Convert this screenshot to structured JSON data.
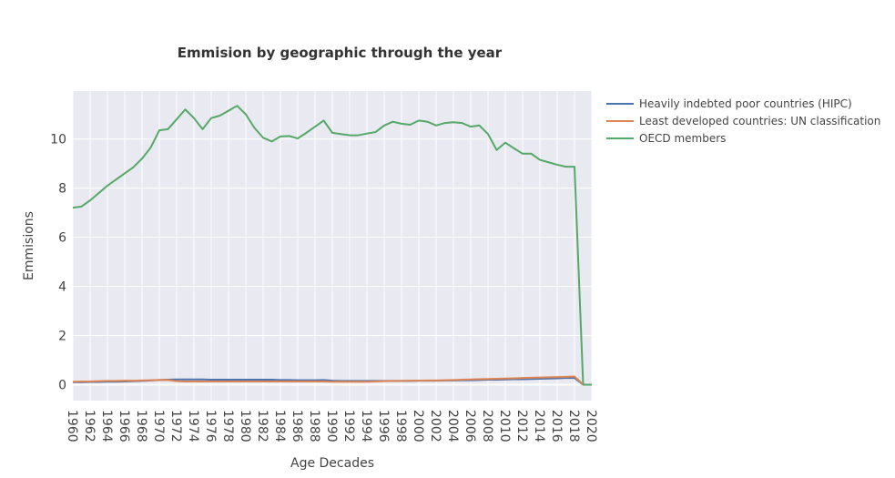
{
  "chart_data": {
    "type": "line",
    "title": "Emmision by geographic through the year",
    "xlabel": "Age Decades",
    "ylabel": "Emmisions",
    "x": [
      1960,
      1961,
      1962,
      1963,
      1964,
      1965,
      1966,
      1967,
      1968,
      1969,
      1970,
      1971,
      1972,
      1973,
      1974,
      1975,
      1976,
      1977,
      1978,
      1979,
      1980,
      1981,
      1982,
      1983,
      1984,
      1985,
      1986,
      1987,
      1988,
      1989,
      1990,
      1991,
      1992,
      1993,
      1994,
      1995,
      1996,
      1997,
      1998,
      1999,
      2000,
      2001,
      2002,
      2003,
      2004,
      2005,
      2006,
      2007,
      2008,
      2009,
      2010,
      2011,
      2012,
      2013,
      2014,
      2015,
      2016,
      2017,
      2018,
      2019,
      2020
    ],
    "xlim": [
      1960,
      2020
    ],
    "ylim": [
      -0.65,
      11.95
    ],
    "xticks": [
      "1960",
      "1962",
      "1964",
      "1966",
      "1968",
      "1970",
      "1972",
      "1974",
      "1976",
      "1978",
      "1980",
      "1982",
      "1984",
      "1986",
      "1988",
      "1990",
      "1992",
      "1994",
      "1996",
      "1998",
      "2000",
      "2002",
      "2004",
      "2006",
      "2008",
      "2010",
      "2012",
      "2014",
      "2016",
      "2018",
      "2020"
    ],
    "yticks": [
      "0",
      "2",
      "4",
      "6",
      "8",
      "10"
    ],
    "grid": true,
    "legend_position": "top-right",
    "series": [
      {
        "name": "Heavily indebted poor countries (HIPC)",
        "color": "#4c72b0",
        "values": [
          0.1,
          0.1,
          0.11,
          0.11,
          0.12,
          0.12,
          0.13,
          0.14,
          0.15,
          0.17,
          0.19,
          0.2,
          0.21,
          0.21,
          0.21,
          0.21,
          0.2,
          0.2,
          0.2,
          0.2,
          0.2,
          0.2,
          0.2,
          0.2,
          0.19,
          0.19,
          0.18,
          0.18,
          0.18,
          0.19,
          0.16,
          0.15,
          0.15,
          0.15,
          0.15,
          0.15,
          0.15,
          0.15,
          0.15,
          0.15,
          0.16,
          0.16,
          0.16,
          0.17,
          0.17,
          0.18,
          0.18,
          0.19,
          0.2,
          0.2,
          0.21,
          0.22,
          0.22,
          0.23,
          0.24,
          0.25,
          0.26,
          0.27,
          0.27,
          0.0,
          0.0
        ]
      },
      {
        "name": "Least developed countries: UN classification",
        "color": "#dd8452",
        "values": [
          0.12,
          0.13,
          0.13,
          0.14,
          0.15,
          0.15,
          0.16,
          0.16,
          0.17,
          0.18,
          0.19,
          0.19,
          0.14,
          0.13,
          0.13,
          0.13,
          0.13,
          0.13,
          0.13,
          0.13,
          0.13,
          0.13,
          0.13,
          0.13,
          0.13,
          0.13,
          0.13,
          0.13,
          0.13,
          0.13,
          0.12,
          0.12,
          0.12,
          0.12,
          0.12,
          0.13,
          0.14,
          0.15,
          0.15,
          0.16,
          0.16,
          0.17,
          0.17,
          0.18,
          0.19,
          0.2,
          0.21,
          0.22,
          0.23,
          0.24,
          0.25,
          0.26,
          0.27,
          0.28,
          0.29,
          0.3,
          0.31,
          0.32,
          0.33,
          0.0,
          0.0
        ]
      },
      {
        "name": "OECD members",
        "color": "#55a868",
        "values": [
          7.2,
          7.25,
          7.5,
          7.8,
          8.1,
          8.35,
          8.6,
          8.85,
          9.2,
          9.65,
          10.35,
          10.4,
          10.8,
          11.2,
          10.85,
          10.4,
          10.85,
          10.95,
          11.15,
          11.35,
          11.0,
          10.45,
          10.05,
          9.9,
          10.1,
          10.12,
          10.02,
          10.25,
          10.5,
          10.75,
          10.25,
          10.2,
          10.15,
          10.15,
          10.22,
          10.28,
          10.55,
          10.7,
          10.62,
          10.58,
          10.75,
          10.7,
          10.55,
          10.65,
          10.68,
          10.65,
          10.5,
          10.55,
          10.2,
          9.55,
          9.85,
          9.62,
          9.4,
          9.4,
          9.15,
          9.05,
          8.95,
          8.87,
          8.87,
          0.0,
          0.0
        ]
      }
    ]
  }
}
